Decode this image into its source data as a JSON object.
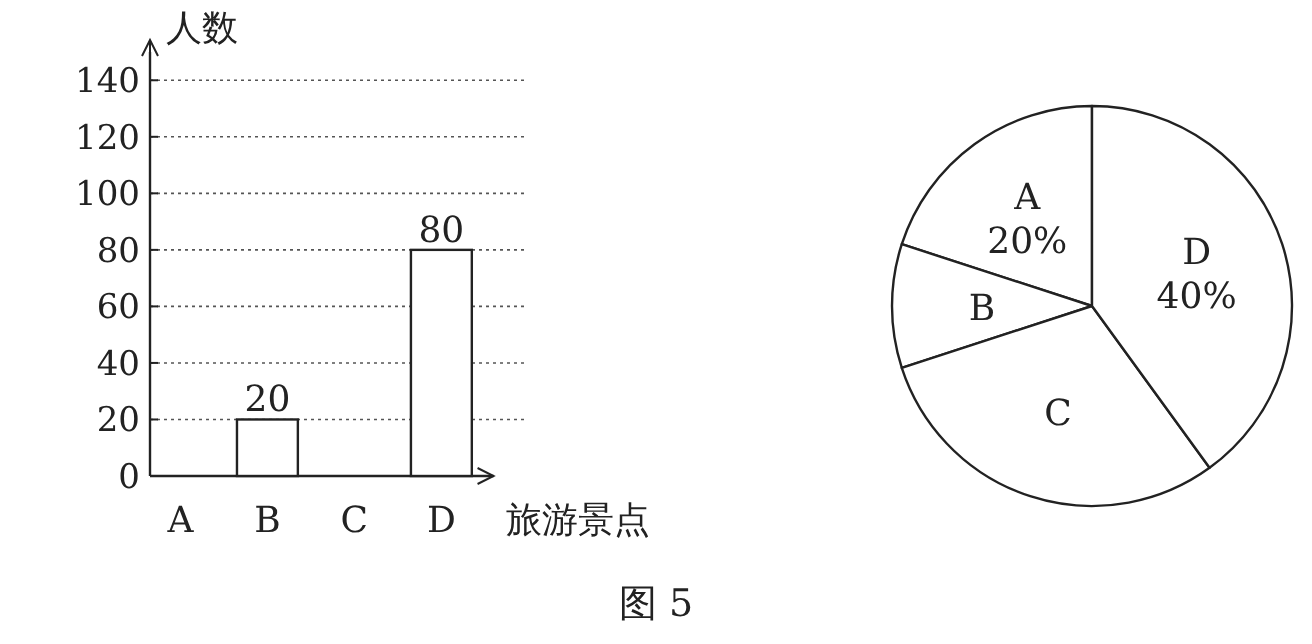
{
  "chart_data": [
    {
      "type": "bar",
      "ylabel": "人数",
      "xlabel": "旅游景点",
      "categories": [
        "A",
        "B",
        "C",
        "D"
      ],
      "values": [
        null,
        20,
        null,
        80
      ],
      "color": "#ffffff",
      "ylim": [
        0,
        150
      ],
      "yticks": [
        0,
        20,
        40,
        60,
        80,
        100,
        120,
        140
      ],
      "grid": "y",
      "data_labels": true,
      "annotations": [
        "图 5"
      ]
    },
    {
      "type": "pie",
      "categories": [
        "A",
        "B",
        "C",
        "D"
      ],
      "values": [
        20,
        10,
        30,
        40
      ],
      "colors": [
        "#ffffff",
        "#ffffff",
        "#ffffff",
        "#ffffff"
      ],
      "value_labels": [
        "20%",
        null,
        null,
        "40%"
      ]
    }
  ]
}
